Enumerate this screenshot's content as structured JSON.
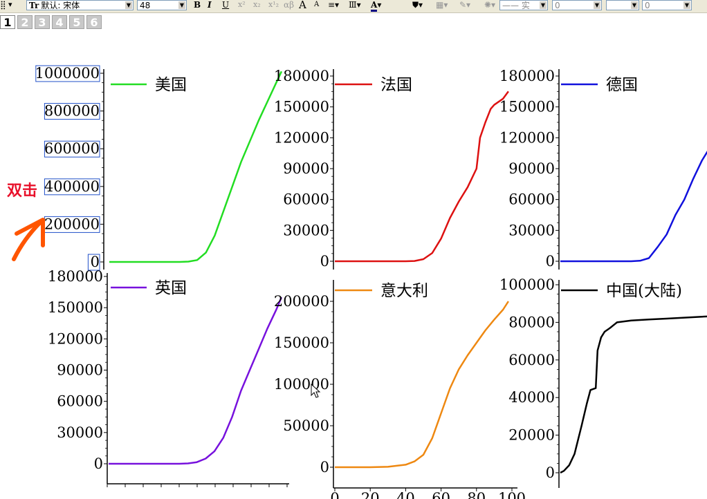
{
  "toolbar": {
    "font_value": "默认: 宋体",
    "size_value": "48",
    "bold": "B",
    "italic": "I",
    "underline": "U",
    "sup": "x²",
    "sub": "x₂",
    "greek": "αβ",
    "big_a": "A",
    "small_a": "A",
    "line_style": "—— 实",
    "num_value_1": "0",
    "num_value_2": "0",
    "colors": {
      "font_color": "#000080"
    }
  },
  "pages": [
    "1",
    "2",
    "3",
    "4",
    "5",
    "6"
  ],
  "active_page": "1",
  "annotation": {
    "text": "双击",
    "color": "#e8102a",
    "arrow_color": "#ff5500"
  },
  "chart_data": [
    {
      "type": "line",
      "legend": "美国",
      "color": "#22dd22",
      "ylim": [
        0,
        1000000
      ],
      "yticks": [
        "0",
        "200000",
        "400000",
        "600000",
        "800000",
        "1000000"
      ],
      "highlighted_yticks": true,
      "x": [
        0,
        10,
        20,
        30,
        40,
        45,
        50,
        55,
        60,
        65,
        70,
        75,
        80,
        85,
        90,
        95,
        98
      ],
      "values": [
        0,
        0,
        0,
        0,
        0,
        2000,
        10000,
        50000,
        140000,
        270000,
        400000,
        530000,
        640000,
        750000,
        850000,
        950000,
        1010000
      ]
    },
    {
      "type": "line",
      "legend": "法国",
      "color": "#dd1111",
      "ylim": [
        0,
        180000
      ],
      "yticks": [
        "0",
        "30000",
        "60000",
        "90000",
        "120000",
        "150000",
        "180000"
      ],
      "x": [
        0,
        10,
        20,
        30,
        40,
        45,
        50,
        55,
        60,
        65,
        70,
        75,
        80,
        82,
        85,
        88,
        90,
        95,
        98
      ],
      "values": [
        0,
        0,
        0,
        0,
        0,
        300,
        2000,
        8000,
        22000,
        42000,
        58000,
        72000,
        90000,
        120000,
        135000,
        148000,
        152000,
        158000,
        165000
      ]
    },
    {
      "type": "line",
      "legend": "德国",
      "color": "#1111dd",
      "ylim": [
        0,
        180000
      ],
      "yticks": [
        "0",
        "30000",
        "60000",
        "90000",
        "120000",
        "150000",
        "180000"
      ],
      "x": [
        0,
        10,
        20,
        30,
        40,
        45,
        50,
        55,
        60,
        65,
        70,
        75,
        80,
        85,
        90
      ],
      "values": [
        0,
        0,
        0,
        0,
        0,
        500,
        3000,
        14000,
        26000,
        45000,
        60000,
        80000,
        98000,
        112000,
        125000
      ]
    },
    {
      "type": "line",
      "legend": "英国",
      "color": "#7711dd",
      "ylim": [
        0,
        180000
      ],
      "yticks": [
        "0",
        "30000",
        "60000",
        "90000",
        "120000",
        "150000",
        "180000"
      ],
      "x": [
        0,
        10,
        20,
        30,
        40,
        45,
        50,
        55,
        60,
        65,
        70,
        75,
        80,
        85,
        90,
        95,
        98
      ],
      "values": [
        0,
        0,
        0,
        0,
        0,
        300,
        1500,
        5000,
        12000,
        25000,
        45000,
        70000,
        90000,
        110000,
        130000,
        148000,
        160000
      ]
    },
    {
      "type": "line",
      "legend": "意大利",
      "color": "#ee8811",
      "ylim": [
        0,
        200000
      ],
      "yticks": [
        "0",
        "50000",
        "100000",
        "150000",
        "200000"
      ],
      "xlim": [
        0,
        100
      ],
      "xticks": [
        "0",
        "20",
        "40",
        "60",
        "80",
        "100"
      ],
      "x": [
        0,
        10,
        20,
        30,
        40,
        45,
        50,
        55,
        60,
        65,
        70,
        75,
        80,
        85,
        90,
        95,
        98
      ],
      "values": [
        0,
        0,
        0,
        500,
        3000,
        7000,
        15000,
        35000,
        65000,
        95000,
        118000,
        135000,
        150000,
        165000,
        178000,
        190000,
        200000
      ]
    },
    {
      "type": "line",
      "legend": "中国(大陆)",
      "color": "#000000",
      "ylim": [
        0,
        100000
      ],
      "yticks": [
        "0",
        "20000",
        "40000",
        "60000",
        "80000",
        "100000"
      ],
      "x": [
        0,
        2,
        5,
        8,
        12,
        15,
        17,
        20,
        21,
        23,
        25,
        28,
        32,
        40,
        50,
        60,
        70,
        80,
        90
      ],
      "values": [
        0,
        1000,
        4000,
        10000,
        25000,
        37000,
        44000,
        45000,
        65000,
        72000,
        75000,
        77000,
        80000,
        81000,
        81500,
        82000,
        82500,
        83000,
        83500
      ]
    }
  ]
}
